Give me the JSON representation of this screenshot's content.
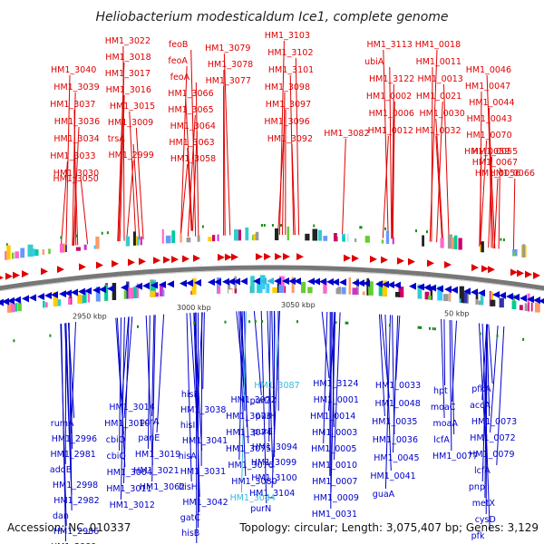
{
  "title": "Heliobacterium modesticaldum Ice1, complete genome",
  "footer": {
    "accession": "Accession: NC_010337",
    "topology": "Topology: circular; Length: 3,075,407 bp; Genes: 3,129"
  },
  "colors": {
    "forward": "#e00000",
    "reverse": "#0000cc",
    "highlight": "#33bbdd",
    "backbone": "#777777",
    "tick": "#1a8a1a"
  },
  "kbp_labels": [
    "2950 kbp",
    "3000 kbp",
    "3050 kbp",
    "50 kbp"
  ],
  "upper_genes": [
    "HM1_3050",
    "HM1_3040",
    "HM1_3039",
    "HM1_3037",
    "HM1_3036",
    "HM1_3034",
    "HM1_3033",
    "HM1_3030",
    "HM1_3022",
    "HM1_3018",
    "HM1_3017",
    "HM1_3016",
    "HM1_3015",
    "HM1_3009",
    "trsA",
    "HM1_2999",
    "feoB",
    "feoA",
    "feoA",
    "HM1_3066",
    "HM1_3065",
    "HM1_3064",
    "HM1_3063",
    "HM1_3058",
    "HM1_3079",
    "HM1_3078",
    "HM1_3077",
    "HM1_3103",
    "HM1_3102",
    "HM1_3101",
    "HM1_3098",
    "HM1_3097",
    "HM1_3096",
    "HM1_3092",
    "HM1_3082",
    "HM1_3113",
    "ubiA",
    "HM1_3122",
    "HM1_0002",
    "HM1_0006",
    "HM1_0012",
    "HM1_0018",
    "HM1_0011",
    "HM1_0013",
    "HM1_0021",
    "HM1_0030",
    "HM1_0032",
    "HM1_0046",
    "HM1_0047",
    "HM1_0044",
    "HM1_0043",
    "HM1_0070",
    "HM1_0059",
    "HM1_0056",
    "HM1_0055",
    "HM1_0067",
    "HM1_0066"
  ],
  "lower_genes": [
    "rumA",
    "HM1_2996",
    "HM1_2981",
    "addB",
    "HM1_2998",
    "HM1_2982",
    "dan",
    "HM1_2986",
    "HM1_2989",
    "HM1_3014",
    "HM1_3010",
    "cbiO",
    "cbiQ",
    "HM1_3004",
    "HM1_3011",
    "HM1_3012",
    "pcrA",
    "panE",
    "HM1_3019",
    "HM1_3021",
    "HM1_3062",
    "hisF",
    "HM1_3038",
    "hisI",
    "HM1_3041",
    "hisA",
    "HM1_3031",
    "hisH",
    "HM1_3042",
    "gatC",
    "hisB",
    "hsdR",
    "HM1_3072",
    "HM1_3073",
    "HM1_3074",
    "HM1_3075",
    "HM1_3076",
    "HM1_3080",
    "HM1_3084",
    "HM1_3087",
    "purD",
    "purH",
    "purE",
    "HM1_3094",
    "HM1_3099",
    "HM1_3100",
    "HM1_3104",
    "purN",
    "HM1_3124",
    "HM1_0001",
    "HM1_0014",
    "HM1_0003",
    "HM1_0005",
    "HM1_0010",
    "HM1_0007",
    "HM1_0009",
    "HM1_0031",
    "HM1_0033",
    "HM1_0048",
    "HM1_0035",
    "HM1_0036",
    "HM1_0045",
    "HM1_0041",
    "guaA",
    "hpt",
    "moaC",
    "moaA",
    "lcfA",
    "HM1_0077",
    "pfkA",
    "accA",
    "HM1_0073",
    "HM1_0072",
    "HM1_0079",
    "lcfA",
    "pnp",
    "metX",
    "cysD",
    "pfk"
  ]
}
